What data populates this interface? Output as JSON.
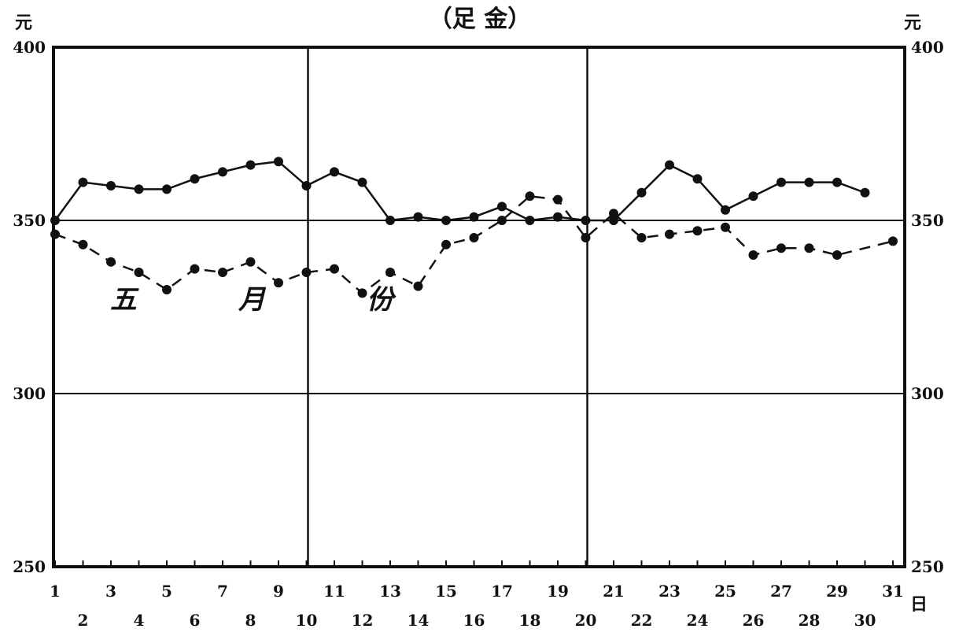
{
  "chart_data": {
    "type": "line",
    "title": "（足 金）",
    "y_unit_left": "元",
    "y_unit_right": "元",
    "x_unit": "日",
    "ylim": [
      250,
      400
    ],
    "y_ticks": [
      250,
      300,
      350,
      400
    ],
    "y_gridlines": [
      300,
      350
    ],
    "x_range": [
      1,
      31
    ],
    "x_divisions": [
      10,
      20
    ],
    "x_ticks_odd": [
      "1",
      "3",
      "5",
      "7",
      "9",
      "11",
      "13",
      "15",
      "17",
      "19",
      "21",
      "23",
      "25",
      "27",
      "29",
      "31"
    ],
    "x_ticks_even": [
      "2",
      "4",
      "6",
      "8",
      "10",
      "12",
      "14",
      "16",
      "18",
      "20",
      "22",
      "24",
      "26",
      "28",
      "30"
    ],
    "annotation": "五 月 份",
    "series": [
      {
        "name": "",
        "style": "solid",
        "color": "#111111",
        "points": [
          {
            "x": 1,
            "y": 350
          },
          {
            "x": 2,
            "y": 361
          },
          {
            "x": 3,
            "y": 360
          },
          {
            "x": 4,
            "y": 359
          },
          {
            "x": 5,
            "y": 359
          },
          {
            "x": 6,
            "y": 362
          },
          {
            "x": 7,
            "y": 364
          },
          {
            "x": 8,
            "y": 366
          },
          {
            "x": 9,
            "y": 367
          },
          {
            "x": 10,
            "y": 360
          },
          {
            "x": 11,
            "y": 364
          },
          {
            "x": 12,
            "y": 361
          },
          {
            "x": 13,
            "y": 350
          },
          {
            "x": 14,
            "y": 351
          },
          {
            "x": 15,
            "y": 350
          },
          {
            "x": 16,
            "y": 351
          },
          {
            "x": 17,
            "y": 354
          },
          {
            "x": 18,
            "y": 350
          },
          {
            "x": 19,
            "y": 351
          },
          {
            "x": 20,
            "y": 350
          },
          {
            "x": 21,
            "y": 350
          },
          {
            "x": 22,
            "y": 358
          },
          {
            "x": 23,
            "y": 366
          },
          {
            "x": 24,
            "y": 362
          },
          {
            "x": 25,
            "y": 353
          },
          {
            "x": 26,
            "y": 357
          },
          {
            "x": 27,
            "y": 361
          },
          {
            "x": 28,
            "y": 361
          },
          {
            "x": 29,
            "y": 361
          },
          {
            "x": 30,
            "y": 358
          }
        ]
      },
      {
        "name": "",
        "style": "dashed",
        "color": "#111111",
        "points": [
          {
            "x": 1,
            "y": 346
          },
          {
            "x": 2,
            "y": 343
          },
          {
            "x": 3,
            "y": 338
          },
          {
            "x": 4,
            "y": 335
          },
          {
            "x": 5,
            "y": 330
          },
          {
            "x": 6,
            "y": 336
          },
          {
            "x": 7,
            "y": 335
          },
          {
            "x": 8,
            "y": 338
          },
          {
            "x": 9,
            "y": 332
          },
          {
            "x": 10,
            "y": 335
          },
          {
            "x": 11,
            "y": 336
          },
          {
            "x": 12,
            "y": 329
          },
          {
            "x": 13,
            "y": 335
          },
          {
            "x": 14,
            "y": 331
          },
          {
            "x": 15,
            "y": 343
          },
          {
            "x": 16,
            "y": 345
          },
          {
            "x": 17,
            "y": 350
          },
          {
            "x": 18,
            "y": 357
          },
          {
            "x": 19,
            "y": 356
          },
          {
            "x": 20,
            "y": 345
          },
          {
            "x": 21,
            "y": 352
          },
          {
            "x": 22,
            "y": 345
          },
          {
            "x": 23,
            "y": 346
          },
          {
            "x": 24,
            "y": 347
          },
          {
            "x": 25,
            "y": 348
          },
          {
            "x": 26,
            "y": 340
          },
          {
            "x": 27,
            "y": 342
          },
          {
            "x": 28,
            "y": 342
          },
          {
            "x": 29,
            "y": 340
          },
          {
            "x": 31,
            "y": 344
          }
        ]
      }
    ]
  }
}
